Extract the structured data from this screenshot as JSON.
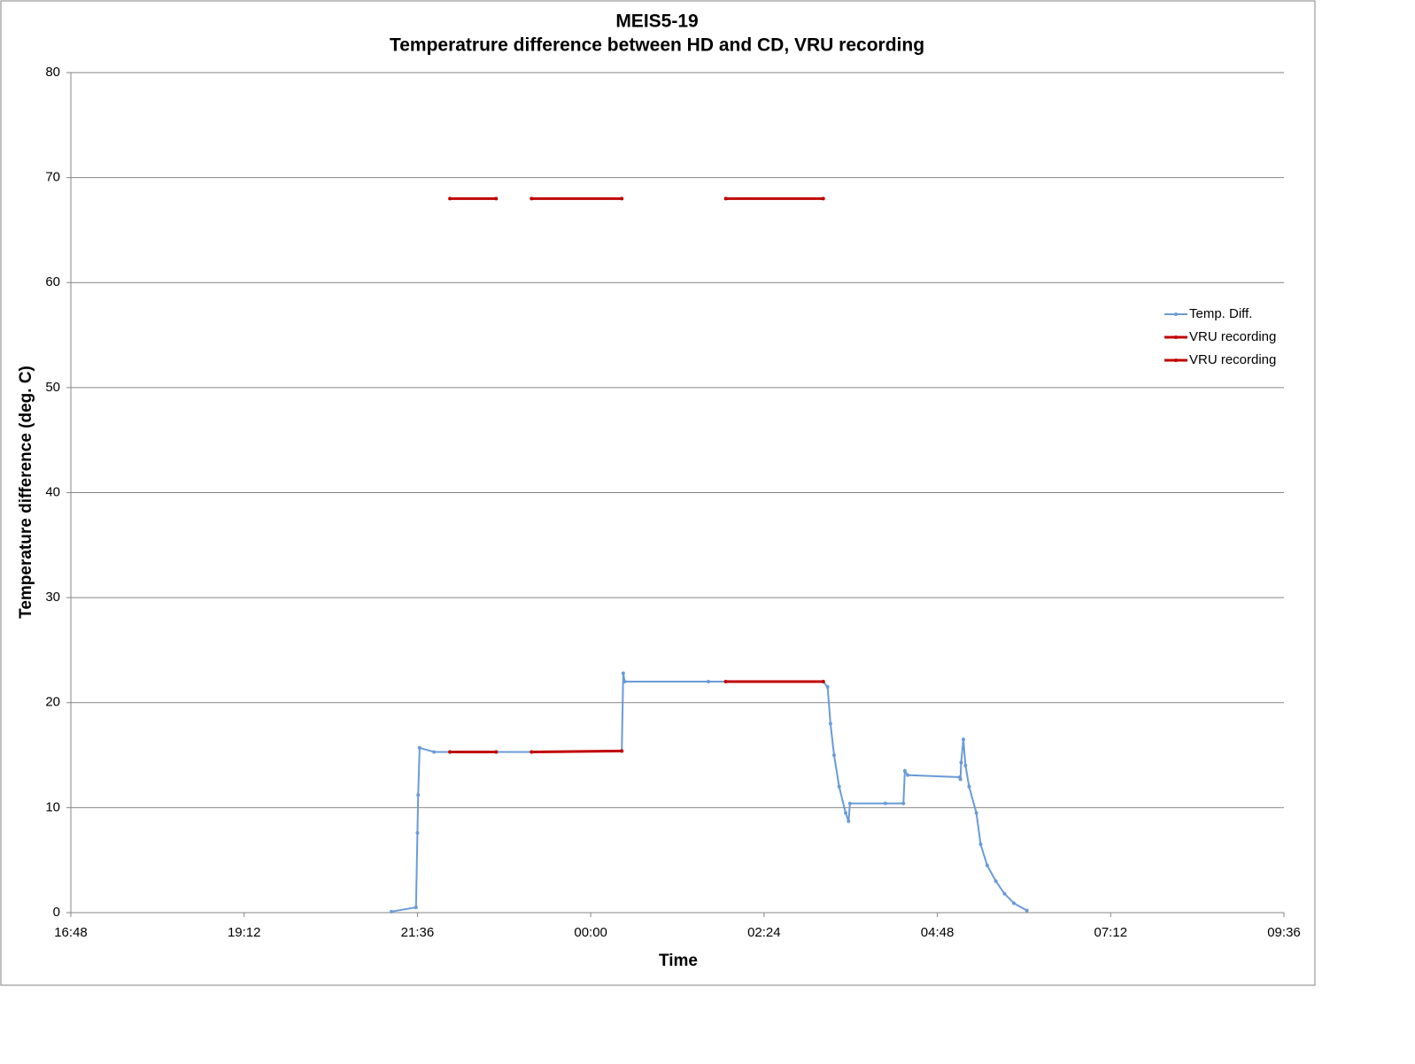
{
  "chart_data": {
    "type": "line",
    "title": "MEIS5-19",
    "subtitle": "Temperatrure difference between HD and CD, VRU recording",
    "x_label": "Time",
    "y_label": "Temperature difference (deg. C)",
    "xlim": [
      16.8,
      33.6
    ],
    "xticks": [
      {
        "value": 16.8,
        "label": "16:48"
      },
      {
        "value": 19.2,
        "label": "19:12"
      },
      {
        "value": 21.6,
        "label": "21:36"
      },
      {
        "value": 24,
        "label": "00:00"
      },
      {
        "value": 26.4,
        "label": "02:24"
      },
      {
        "value": 28.8,
        "label": "04:48"
      },
      {
        "value": 31.2,
        "label": "07:12"
      },
      {
        "value": 33.6,
        "label": "09:36"
      }
    ],
    "ylim": [
      0,
      80
    ],
    "yticks": [
      0,
      10,
      20,
      30,
      40,
      50,
      60,
      70,
      80
    ],
    "grid": true,
    "legend": "right",
    "series": [
      {
        "name": "Temp. Diff.",
        "color": "#6a9bd8",
        "x": [
          21.24,
          21.58,
          21.6,
          21.61,
          21.63,
          21.83,
          22.69,
          23.18,
          24.43,
          24.45,
          24.47,
          25.63,
          27.22,
          27.28,
          27.32,
          27.37,
          27.44,
          27.53,
          27.57,
          27.59,
          28.08,
          28.33,
          28.35,
          28.39,
          29.11,
          29.12,
          29.13,
          29.16,
          29.19,
          29.24,
          29.34,
          29.4,
          29.49,
          29.61,
          29.73,
          29.86,
          30.04
        ],
        "values": [
          0.1,
          0.5,
          7.6,
          11.2,
          15.7,
          15.3,
          15.3,
          15.3,
          15.4,
          22.8,
          22.0,
          22.0,
          22.0,
          21.5,
          18,
          15,
          12,
          9.5,
          8.7,
          10.4,
          10.4,
          10.4,
          13.5,
          13.1,
          12.9,
          12.7,
          14.3,
          16.5,
          14,
          12,
          9.5,
          6.5,
          4.5,
          3,
          1.8,
          0.9,
          0.2
        ]
      },
      {
        "name": "VRU recording",
        "color": "#c00000",
        "x": [
          22.05,
          22.69,
          22.9,
          23.18,
          24.43,
          25.2,
          25.87,
          27.22
        ],
        "values": [
          15.3,
          15.3,
          null,
          15.3,
          15.4,
          null,
          22.0,
          22.0
        ]
      },
      {
        "name": "VRU recording",
        "color": "#c00000",
        "x": [
          22.05,
          22.69,
          22.9,
          23.18,
          24.43,
          25.2,
          25.87,
          27.22
        ],
        "values": [
          68,
          68,
          null,
          68,
          68,
          null,
          68,
          68
        ]
      }
    ]
  }
}
